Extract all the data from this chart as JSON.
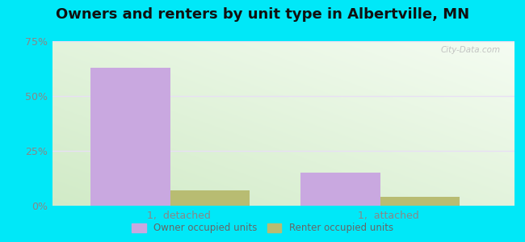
{
  "title": "Owners and renters by unit type in Albertville, MN",
  "categories": [
    "1,  detached",
    "1,  attached"
  ],
  "owner_values": [
    63,
    15
  ],
  "renter_values": [
    7,
    4
  ],
  "owner_color": "#c9a8e0",
  "renter_color": "#b8bc72",
  "ylim": [
    0,
    75
  ],
  "yticks": [
    0,
    25,
    50,
    75
  ],
  "ytick_labels": [
    "0%",
    "25%",
    "50%",
    "75%"
  ],
  "background_outer": "#00e8f8",
  "background_grad_top": "#e8f5e9",
  "background_grad_bottom": "#d8efd0",
  "title_fontsize": 13,
  "legend_labels": [
    "Owner occupied units",
    "Renter occupied units"
  ],
  "watermark": "City-Data.com",
  "bar_width": 0.38,
  "tick_color": "#888888",
  "grid_color": "#e8dff5"
}
